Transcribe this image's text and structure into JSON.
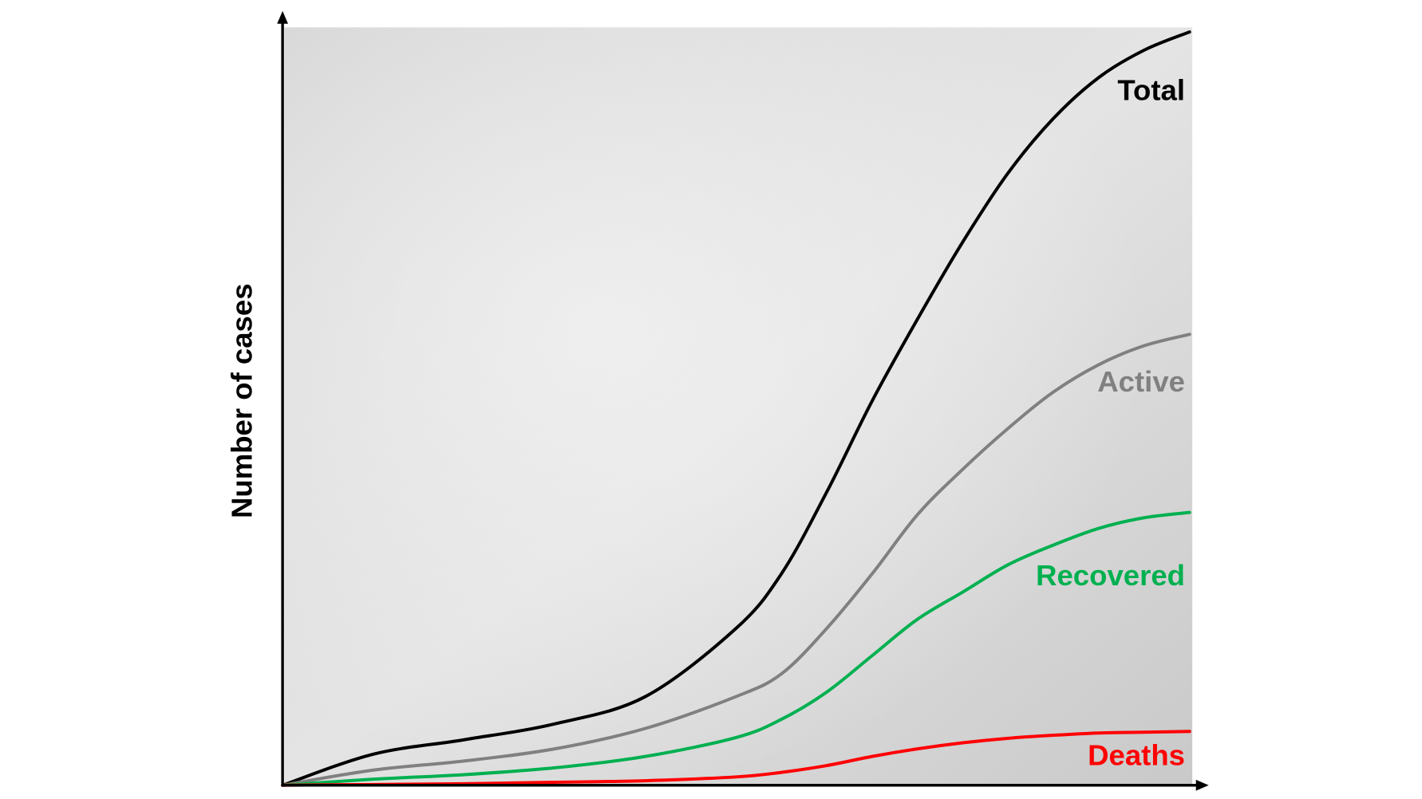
{
  "chart_data": {
    "type": "line",
    "y_label": "Number of cases",
    "x": [
      0,
      10,
      20,
      30,
      40,
      50,
      55,
      60,
      65,
      70,
      75,
      80,
      85,
      90,
      95,
      100
    ],
    "xlim": [
      0,
      100
    ],
    "ylim": [
      0,
      100
    ],
    "series": [
      {
        "name": "Total",
        "color": "#000000",
        "values": [
          0,
          4.1,
          6,
          8.1,
          11.7,
          20.7,
          27.9,
          38.7,
          50.7,
          61.5,
          71.7,
          80.8,
          88,
          93.4,
          97,
          99.4
        ]
      },
      {
        "name": "Active",
        "color": "#808080",
        "values": [
          0,
          2,
          3.2,
          4.8,
          7.5,
          11.7,
          14.7,
          20.7,
          27.9,
          35.7,
          41.7,
          47.1,
          51.9,
          55.5,
          58,
          59.5
        ]
      },
      {
        "name": "Recovered",
        "color": "#00b050",
        "values": [
          0,
          0.8,
          1.4,
          2.3,
          3.8,
          6.3,
          8.7,
          12.3,
          17.1,
          21.9,
          25.5,
          29.1,
          31.7,
          33.9,
          35.3,
          36
        ]
      },
      {
        "name": "Deaths",
        "color": "#ff0000",
        "values": [
          0,
          0.1,
          0.2,
          0.4,
          0.6,
          1.1,
          1.7,
          2.6,
          3.8,
          4.8,
          5.6,
          6.2,
          6.6,
          6.9,
          7.0,
          7.1
        ]
      }
    ]
  }
}
